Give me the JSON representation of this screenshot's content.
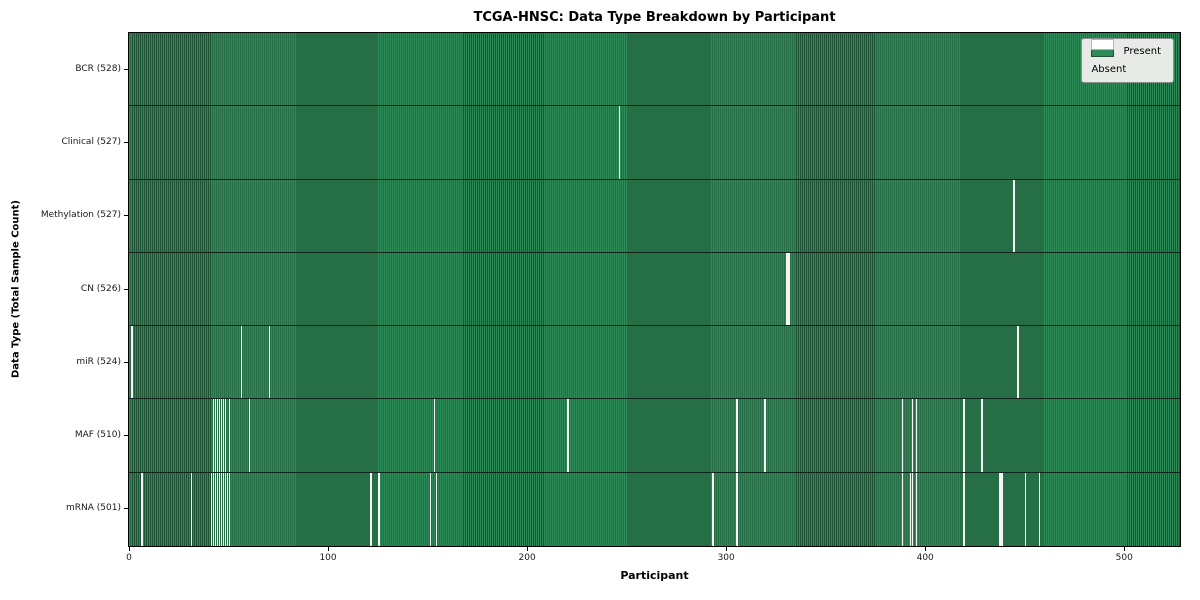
{
  "chart_data": {
    "type": "heatmap",
    "title": "TCGA-HNSC: Data Type Breakdown by Participant",
    "xlabel": "Participant",
    "ylabel": "Data Type (Total Sample Count)",
    "x_ticks": [
      0,
      100,
      200,
      300,
      400,
      500
    ],
    "x_range": [
      0,
      528
    ],
    "total_participants": 528,
    "present_color": "#2e8b57",
    "absent_color": "#ffffff",
    "legend_position": "upper right",
    "legend_labels": {
      "present": "Present",
      "absent": "Absent"
    },
    "rows": [
      {
        "label": "BCR (528)",
        "name": "BCR",
        "present_count": 528,
        "absent_indices": []
      },
      {
        "label": "Clinical (527)",
        "name": "Clinical",
        "present_count": 527,
        "absent_indices": [
          246
        ]
      },
      {
        "label": "Methylation (527)",
        "name": "Methylation",
        "present_count": 527,
        "absent_indices": [
          444
        ]
      },
      {
        "label": "CN (526)",
        "name": "CN",
        "present_count": 526,
        "absent_indices": [
          330,
          331
        ]
      },
      {
        "label": "miR (524)",
        "name": "miR",
        "present_count": 524,
        "absent_indices": [
          1,
          56,
          70,
          446
        ]
      },
      {
        "label": "MAF (510)",
        "name": "MAF",
        "present_count": 510,
        "absent_indices": [
          42,
          43,
          44,
          45,
          46,
          47,
          48,
          50,
          60,
          153,
          220,
          305,
          319,
          388,
          393,
          395,
          419,
          428
        ]
      },
      {
        "label": "mRNA (501)",
        "name": "mRNA",
        "present_count": 501,
        "absent_indices": [
          6,
          31,
          41,
          42,
          43,
          44,
          45,
          46,
          47,
          48,
          49,
          50,
          121,
          125,
          151,
          154,
          293,
          305,
          388,
          392,
          393,
          395,
          419,
          437,
          438,
          450,
          457
        ]
      }
    ]
  }
}
